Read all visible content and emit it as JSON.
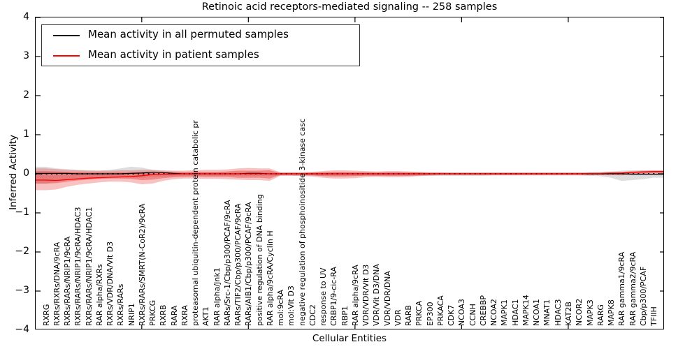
{
  "chart_data": {
    "type": "line",
    "title": "Retinoic acid receptors-mediated signaling -- 258 samples",
    "xlabel": "Cellular Entities",
    "ylabel": "Inferred Activity",
    "ylim": [
      -4,
      4
    ],
    "yticks": [
      "4",
      "3",
      "2",
      "1",
      "0",
      "−1",
      "−2",
      "−3",
      "−4"
    ],
    "ytick_values": [
      4,
      3,
      2,
      1,
      0,
      -1,
      -2,
      -3,
      -4
    ],
    "grid": false,
    "legend_position": "upper left",
    "categories": [
      "RXRG",
      "RXRs/RXRs/DNA/9cRA",
      "RXRs/RARs/NRIP1/9cRA",
      "RXRs/RARs/NRIP1/9cRA/HDAC3",
      "RXRs/RARs/NRIP1/9cRA/HDAC1",
      "RAR alpha/RXRs",
      "RXRs/VDR/DNA/Vit D3",
      "RXRs/RARs",
      "NRIP1",
      "RXRs/RARs/SMRT(N-CoR2)/9cRA",
      "PRKCG",
      "RXRB",
      "RARA",
      "RXRA",
      "proteasomal ubiquitin-dependent protein catabolic pr",
      "AKT1",
      "RAR alpha/Jnk1",
      "RARs/Src-1/Cbp/p300/PCAF/9cRA",
      "RARs/TIF2/Cbp/p300/PCAF/9cRA",
      "RARs/AIB1/Cbp/p300/PCAF/9cRA",
      "positive regulation of DNA binding",
      "RAR alpha/9cRA/Cyclin H",
      "mol:9cRA",
      "mol:Vit D3",
      "negative regulation of phosphoinositide 3-kinase casc",
      "CDC2",
      "response to UV",
      "CRBP1/9-cic-RA",
      "RBP1",
      "RAR alpha/9cRA",
      "VDR/VDR/Vit D3",
      "VDR/Vit D3/DNA",
      "VDR/VDR/DNA",
      "VDR",
      "RARB",
      "PRKCA",
      "EP300",
      "PRKACA",
      "CDK7",
      "NCOA3",
      "CCNH",
      "CREBBP",
      "NCOA2",
      "MAPK1",
      "HDAC1",
      "MAPK14",
      "NCOA1",
      "MNAT1",
      "HDAC3",
      "KAT2B",
      "NCOR2",
      "MAPK3",
      "RARG",
      "MAPK8",
      "RAR gamma1/9cRA",
      "RAR gamma2/9cRA",
      "Cbp/p300/PCAF",
      "TFIIH"
    ],
    "series": [
      {
        "name": "Mean activity in all permuted samples",
        "color": "#000000",
        "values": [
          0.01,
          0.01,
          0.01,
          0.0,
          0.0,
          0.0,
          0.0,
          0.0,
          0.01,
          0.02,
          0.04,
          0.03,
          0.01,
          0.0,
          0.0,
          0.0,
          0.0,
          0.0,
          0.0,
          0.01,
          0.01,
          0.0,
          0.0,
          0.0,
          0.0,
          0.0,
          0.0,
          0.0,
          0.0,
          0.0,
          0.0,
          0.0,
          0.0,
          0.0,
          0.0,
          0.0,
          0.0,
          0.0,
          0.0,
          0.0,
          0.0,
          0.0,
          0.0,
          0.0,
          0.0,
          0.0,
          0.0,
          0.0,
          0.0,
          0.0,
          0.0,
          0.0,
          0.0,
          0.0,
          0.0,
          -0.01,
          -0.01,
          -0.01
        ]
      },
      {
        "name": "Mean activity in patient samples",
        "color": "#ff0000",
        "values": [
          -0.16,
          -0.17,
          -0.15,
          -0.13,
          -0.11,
          -0.1,
          -0.09,
          -0.08,
          -0.07,
          -0.05,
          -0.02,
          -0.01,
          -0.01,
          0.0,
          0.0,
          0.0,
          0.0,
          0.0,
          0.0,
          0.0,
          0.0,
          0.0,
          0.0,
          0.0,
          0.0,
          0.0,
          0.0,
          0.0,
          0.0,
          0.0,
          0.0,
          0.0,
          0.0,
          0.0,
          0.0,
          0.0,
          0.0,
          0.0,
          0.0,
          0.0,
          0.0,
          0.0,
          0.0,
          0.0,
          0.0,
          0.0,
          0.0,
          0.0,
          0.0,
          0.0,
          0.0,
          0.01,
          0.01,
          0.02,
          0.02,
          0.04,
          0.05,
          0.06
        ]
      }
    ],
    "bands": [
      {
        "name": "permuted samples std band",
        "color": "rgba(150,150,150,0.32)",
        "upper": [
          0.18,
          0.14,
          0.12,
          0.1,
          0.09,
          0.08,
          0.1,
          0.14,
          0.18,
          0.16,
          0.1,
          0.07,
          0.06,
          0.05,
          0.05,
          0.05,
          0.05,
          0.05,
          0.05,
          0.05,
          0.05,
          0.05,
          0.04,
          0.04,
          0.04,
          0.04,
          0.04,
          0.04,
          0.04,
          0.04,
          0.04,
          0.04,
          0.04,
          0.04,
          0.04,
          0.04,
          0.04,
          0.04,
          0.04,
          0.04,
          0.04,
          0.04,
          0.04,
          0.04,
          0.04,
          0.04,
          0.04,
          0.04,
          0.04,
          0.04,
          0.04,
          0.04,
          0.05,
          0.06,
          0.08,
          0.09,
          0.09,
          0.08
        ],
        "lower": [
          -0.25,
          -0.2,
          -0.16,
          -0.13,
          -0.11,
          -0.1,
          -0.1,
          -0.1,
          -0.1,
          -0.1,
          -0.08,
          -0.07,
          -0.06,
          -0.05,
          -0.05,
          -0.05,
          -0.05,
          -0.05,
          -0.05,
          -0.05,
          -0.05,
          -0.05,
          -0.05,
          -0.05,
          -0.05,
          -0.05,
          -0.05,
          -0.05,
          -0.05,
          -0.05,
          -0.05,
          -0.05,
          -0.05,
          -0.05,
          -0.05,
          -0.05,
          -0.05,
          -0.05,
          -0.05,
          -0.05,
          -0.05,
          -0.05,
          -0.04,
          -0.04,
          -0.04,
          -0.04,
          -0.04,
          -0.04,
          -0.04,
          -0.04,
          -0.04,
          -0.05,
          -0.06,
          -0.1,
          -0.18,
          -0.16,
          -0.14,
          -0.1
        ]
      },
      {
        "name": "patient samples outer band",
        "color": "rgba(235,65,65,0.32)",
        "upper": [
          0.14,
          0.12,
          0.1,
          0.09,
          0.08,
          0.08,
          0.08,
          0.09,
          0.09,
          0.1,
          0.1,
          0.09,
          0.08,
          0.08,
          0.09,
          0.1,
          0.1,
          0.11,
          0.14,
          0.15,
          0.14,
          0.14,
          0.04,
          0.04,
          0.04,
          0.05,
          0.07,
          0.09,
          0.09,
          0.08,
          0.07,
          0.06,
          0.07,
          0.07,
          0.06,
          0.05,
          0.04,
          0.04,
          0.03,
          0.03,
          0.03,
          0.03,
          0.03,
          0.03,
          0.03,
          0.03,
          0.03,
          0.03,
          0.03,
          0.03,
          0.03,
          0.03,
          0.03,
          0.04,
          0.05,
          0.07,
          0.08,
          0.09
        ],
        "lower": [
          -0.42,
          -0.4,
          -0.33,
          -0.28,
          -0.25,
          -0.22,
          -0.2,
          -0.2,
          -0.22,
          -0.27,
          -0.25,
          -0.18,
          -0.14,
          -0.12,
          -0.12,
          -0.13,
          -0.13,
          -0.14,
          -0.15,
          -0.16,
          -0.16,
          -0.18,
          -0.05,
          -0.05,
          -0.06,
          -0.07,
          -0.1,
          -0.12,
          -0.12,
          -0.11,
          -0.09,
          -0.08,
          -0.09,
          -0.09,
          -0.08,
          -0.06,
          -0.05,
          -0.04,
          -0.04,
          -0.04,
          -0.04,
          -0.04,
          -0.04,
          -0.04,
          -0.04,
          -0.04,
          -0.04,
          -0.04,
          -0.04,
          -0.04,
          -0.04,
          -0.04,
          -0.03,
          -0.03,
          -0.04,
          -0.02,
          -0.01,
          0.0
        ]
      },
      {
        "name": "patient samples inner band",
        "color": "rgba(230,55,55,0.42)",
        "upper": [
          0.07,
          0.06,
          0.05,
          0.05,
          0.04,
          0.04,
          0.04,
          0.04,
          0.04,
          0.05,
          0.05,
          0.04,
          0.04,
          0.04,
          0.05,
          0.05,
          0.05,
          0.06,
          0.08,
          0.08,
          0.08,
          0.09,
          0.02,
          0.02,
          0.02,
          0.03,
          0.04,
          0.05,
          0.05,
          0.04,
          0.04,
          0.03,
          0.04,
          0.04,
          0.03,
          0.03,
          0.02,
          0.02,
          0.02,
          0.02,
          0.02,
          0.02,
          0.02,
          0.02,
          0.02,
          0.02,
          0.02,
          0.02,
          0.02,
          0.02,
          0.02,
          0.02,
          0.02,
          0.02,
          0.03,
          0.04,
          0.05,
          0.06
        ],
        "lower": [
          -0.25,
          -0.24,
          -0.2,
          -0.17,
          -0.15,
          -0.13,
          -0.12,
          -0.12,
          -0.13,
          -0.16,
          -0.15,
          -0.11,
          -0.09,
          -0.08,
          -0.07,
          -0.08,
          -0.08,
          -0.08,
          -0.1,
          -0.1,
          -0.1,
          -0.12,
          -0.03,
          -0.03,
          -0.03,
          -0.04,
          -0.06,
          -0.07,
          -0.07,
          -0.06,
          -0.05,
          -0.05,
          -0.05,
          -0.05,
          -0.05,
          -0.04,
          -0.03,
          -0.02,
          -0.02,
          -0.02,
          -0.02,
          -0.02,
          -0.02,
          -0.02,
          -0.02,
          -0.02,
          -0.02,
          -0.02,
          -0.02,
          -0.02,
          -0.02,
          -0.02,
          -0.02,
          -0.02,
          -0.02,
          0.0,
          0.01,
          0.02
        ]
      }
    ],
    "zero_line": {
      "style": "dotted",
      "color": "#000000"
    },
    "top_tick_indices": [
      9,
      19,
      29,
      39,
      49
    ]
  }
}
